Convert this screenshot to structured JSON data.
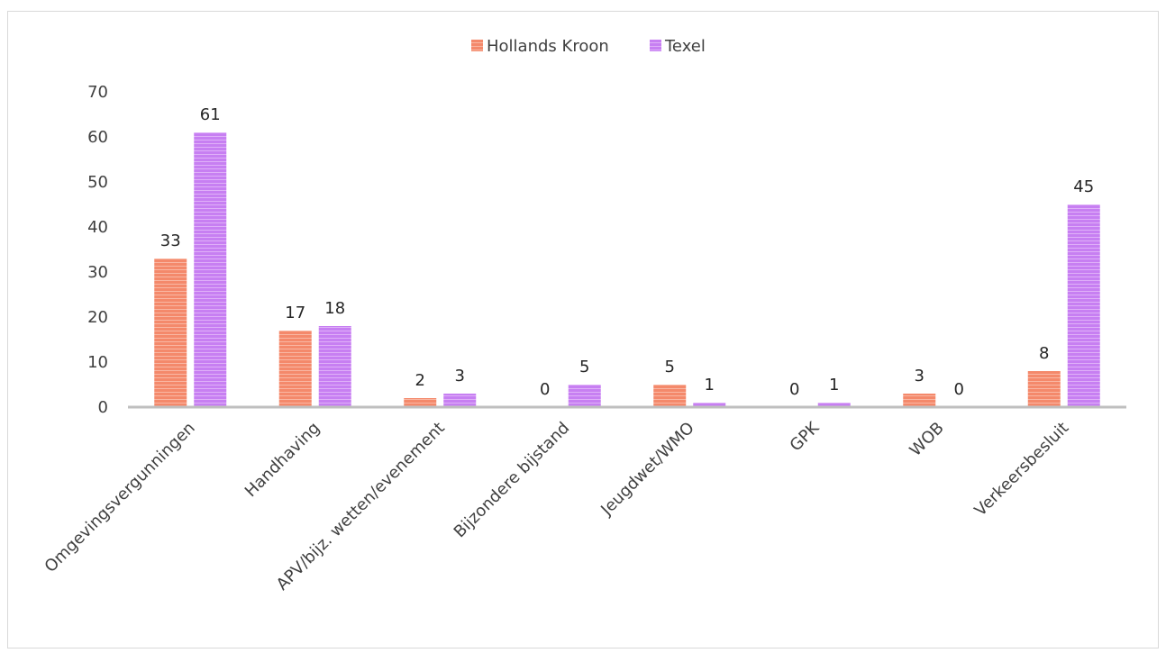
{
  "chart_data": {
    "type": "bar",
    "title": "",
    "xlabel": "",
    "ylabel": "",
    "categories": [
      "Omgevingsvergunningen",
      "Handhaving",
      "APV/bijz. wetten/evenement",
      "Bijzondere bijstand",
      "Jeugdwet/WMO",
      "GPK",
      "WOB",
      "Verkeersbesluit"
    ],
    "series": [
      {
        "name": "Hollands Kroon",
        "color": "#f4896b",
        "values": [
          33,
          17,
          2,
          0,
          5,
          0,
          3,
          8
        ]
      },
      {
        "name": "Texel",
        "color": "#c77ff2",
        "values": [
          61,
          18,
          3,
          5,
          1,
          1,
          0,
          45
        ]
      }
    ],
    "yticks": [
      0,
      10,
      20,
      30,
      40,
      50,
      60,
      70
    ],
    "ylim": [
      0,
      70
    ],
    "grid": false,
    "legend_position": "top-center",
    "data_labels": true
  }
}
